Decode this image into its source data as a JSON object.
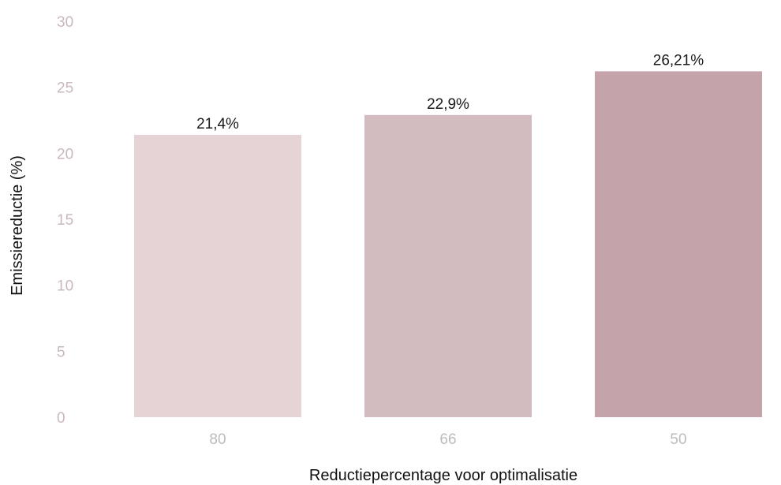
{
  "chart_data": {
    "type": "bar",
    "categories": [
      "80",
      "66",
      "50"
    ],
    "values": [
      21.4,
      22.9,
      26.21
    ],
    "data_labels": [
      "21,4%",
      "22,9%",
      "26,21%"
    ],
    "xlabel": "Reductiepercentage voor optimalisatie",
    "ylabel": "Emissiereductie (%)",
    "ylim": [
      0,
      30
    ],
    "yticks": [
      0,
      5,
      10,
      15,
      20,
      25,
      30
    ],
    "grid": false,
    "legend": "none",
    "bar_colors": [
      "#e6d3d5",
      "#d2bcc0",
      "#c4a4aa"
    ],
    "tick_color": "#c9b8bc"
  }
}
